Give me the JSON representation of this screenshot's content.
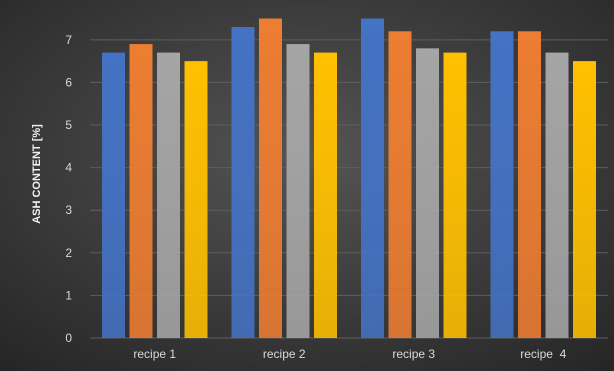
{
  "chart_data": {
    "type": "bar",
    "title": "",
    "xlabel": "",
    "ylabel": "ASH CONTENT [%]",
    "ylim": [
      0,
      7.7
    ],
    "yticks": [
      0,
      1,
      2,
      3,
      4,
      5,
      6,
      7
    ],
    "grid": true,
    "legend": "none",
    "categories": [
      "recipe 1",
      "recipe 2",
      "recipe 3",
      "recipe  4"
    ],
    "series": [
      {
        "values": [
          6.7,
          7.3,
          7.5,
          7.2
        ],
        "color": "#4472c4"
      },
      {
        "values": [
          6.9,
          7.5,
          7.2,
          7.2
        ],
        "color": "#ed7d31"
      },
      {
        "values": [
          6.7,
          6.9,
          6.8,
          6.7
        ],
        "color": "#a5a5a5"
      },
      {
        "values": [
          6.5,
          6.7,
          6.7,
          6.5
        ],
        "color": "#ffc000"
      }
    ]
  },
  "colors": {
    "background_inner": "#545454",
    "background_outer": "#262626",
    "gridline": "#5e5e5e",
    "text": "#d9d9d9"
  }
}
